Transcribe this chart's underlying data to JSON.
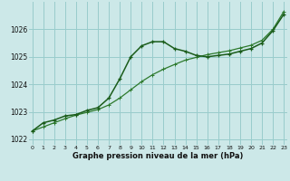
{
  "xlabel": "Graphe pression niveau de la mer (hPa)",
  "bg_color": "#cce8e8",
  "grid_color": "#99cccc",
  "line1_color": "#1a5c1a",
  "line2_color": "#2d7a2d",
  "hours": [
    0,
    1,
    2,
    3,
    4,
    5,
    6,
    7,
    8,
    9,
    10,
    11,
    12,
    13,
    14,
    15,
    16,
    17,
    18,
    19,
    20,
    21,
    22,
    23
  ],
  "series1": [
    1022.3,
    1022.6,
    1022.7,
    1022.85,
    1022.9,
    1023.05,
    1023.15,
    1023.5,
    1024.2,
    1025.0,
    1025.4,
    1025.55,
    1025.55,
    1025.3,
    1025.2,
    1025.05,
    1025.0,
    1025.05,
    1025.1,
    1025.2,
    1025.3,
    1025.5,
    1025.95,
    1026.55
  ],
  "series2": [
    1022.3,
    1022.45,
    1022.6,
    1022.75,
    1022.88,
    1022.98,
    1023.08,
    1023.25,
    1023.5,
    1023.8,
    1024.1,
    1024.35,
    1024.55,
    1024.72,
    1024.88,
    1024.98,
    1025.08,
    1025.15,
    1025.22,
    1025.32,
    1025.42,
    1025.6,
    1026.0,
    1026.65
  ],
  "ylim": [
    1021.8,
    1027.0
  ],
  "yticks": [
    1022,
    1023,
    1024,
    1025,
    1026
  ],
  "xlim": [
    -0.3,
    23.3
  ],
  "xticks": [
    0,
    1,
    2,
    3,
    4,
    5,
    6,
    7,
    8,
    9,
    10,
    11,
    12,
    13,
    14,
    15,
    16,
    17,
    18,
    19,
    20,
    21,
    22,
    23
  ]
}
